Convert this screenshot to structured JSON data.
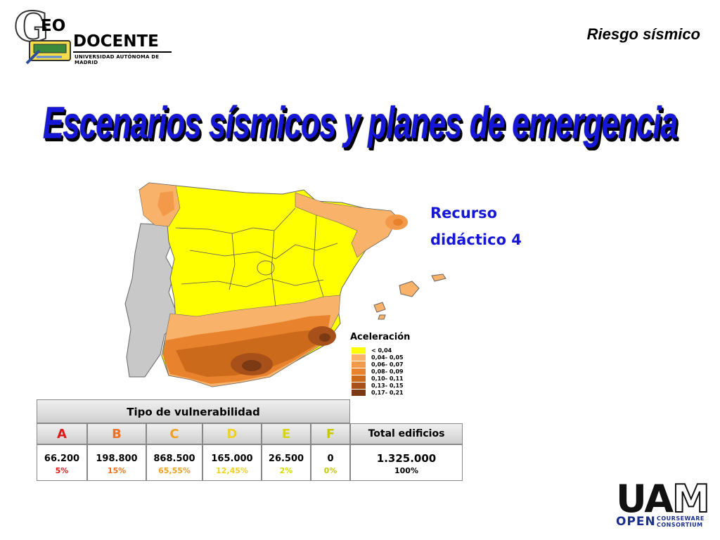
{
  "header": {
    "logo_letter": "G",
    "logo_eo": "EO",
    "logo_docente": "DOCENTE",
    "logo_university": "UNIVERSIDAD AUTÓNOMA DE MADRID",
    "section_title": "Riesgo sísmico"
  },
  "main_title": "Escenarios sísmicos y planes de emergencia",
  "resource": {
    "line1": "Recurso",
    "line2": "didáctico 4"
  },
  "legend": {
    "title": "Aceleración",
    "items": [
      {
        "label": "< 0,04",
        "color": "#ffff00"
      },
      {
        "label": "0,04- 0,05",
        "color": "#f8b26a"
      },
      {
        "label": "0,06- 0,07",
        "color": "#f39a4a"
      },
      {
        "label": "0,08- 0,09",
        "color": "#e8822c"
      },
      {
        "label": "0,10- 0,11",
        "color": "#cc6a1c"
      },
      {
        "label": "0,13- 0,15",
        "color": "#a8501a"
      },
      {
        "label": "0,17- 0,21",
        "color": "#7c3a14"
      }
    ]
  },
  "colors": {
    "sea": "#ffffff",
    "portugal": "#c8c8c8",
    "title_blue": "#1616d6"
  },
  "table": {
    "title": "Tipo de vulnerabilidad",
    "total_header": "Total edificios",
    "columns": [
      {
        "letter": "A",
        "value": "66.200",
        "percent": "5%",
        "color": "#e01a1a"
      },
      {
        "letter": "B",
        "value": "198.800",
        "percent": "15%",
        "color": "#f0701c"
      },
      {
        "letter": "C",
        "value": "868.500",
        "percent": "65,55%",
        "color": "#f0a020"
      },
      {
        "letter": "D",
        "value": "165.000",
        "percent": "12,45%",
        "color": "#f0d020"
      },
      {
        "letter": "E",
        "value": "26.500",
        "percent": "2%",
        "color": "#d8d800"
      },
      {
        "letter": "F",
        "value": "0",
        "percent": "0%",
        "color": "#c8c800"
      }
    ],
    "total": {
      "value": "1.325.000",
      "percent": "100%"
    }
  },
  "footer": {
    "uam": "UA",
    "uam_m": "M",
    "open": "OPEN",
    "courseware_1": "COURSEWARE",
    "courseware_2": "CONSORTIUM"
  }
}
